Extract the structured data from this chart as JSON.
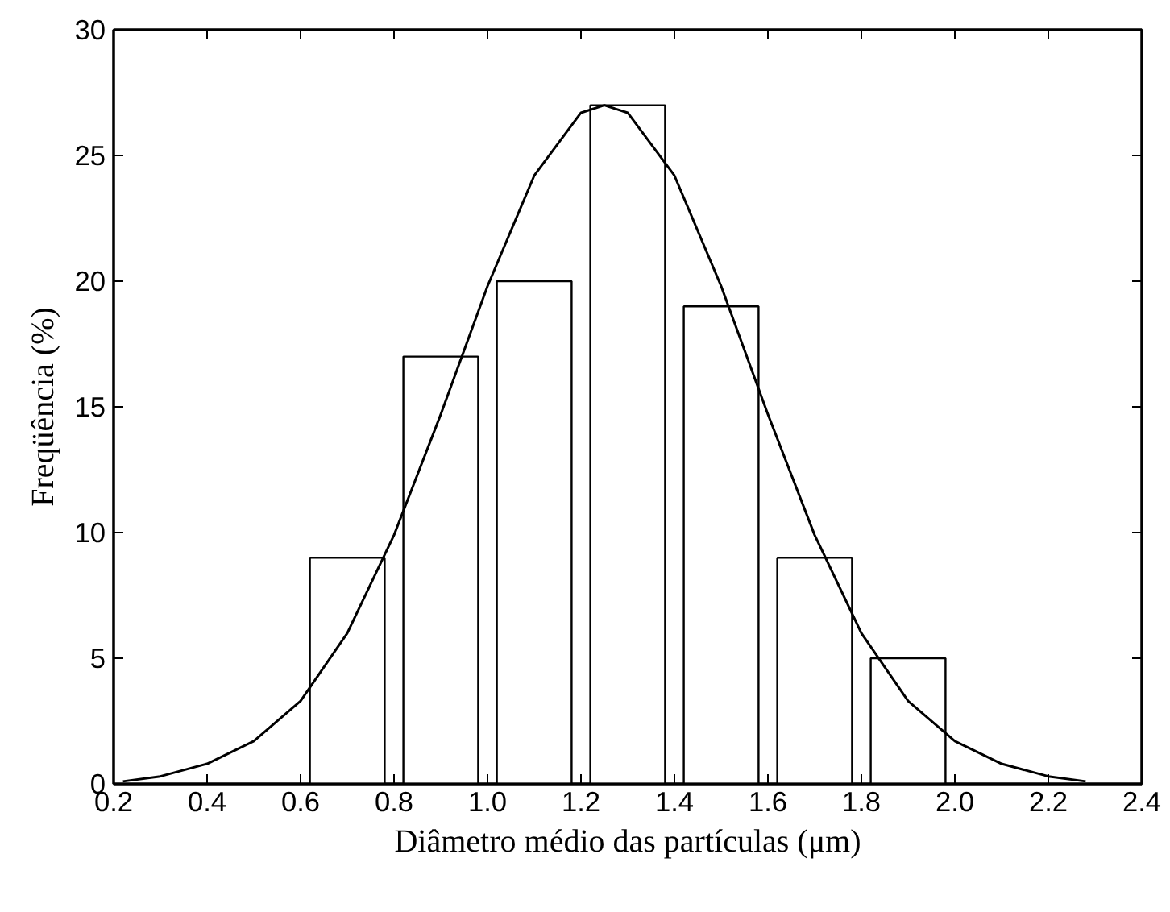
{
  "chart_data": {
    "type": "bar",
    "xlabel": "Diâmetro médio das partículas (μm)",
    "ylabel": "Freqüência (%)",
    "x": [
      0.7,
      0.9,
      1.1,
      1.3,
      1.5,
      1.7,
      1.9
    ],
    "series": [
      {
        "color": "#ffffff",
        "values": [
          9,
          17,
          20,
          27,
          19,
          9,
          5
        ]
      },
      {
        "type": "line",
        "color": "#000000",
        "x": [
          0.22,
          0.3,
          0.4,
          0.5,
          0.6,
          0.7,
          0.8,
          0.9,
          1.0,
          1.1,
          1.2,
          1.25,
          1.3,
          1.4,
          1.5,
          1.6,
          1.7,
          1.8,
          1.9,
          2.0,
          2.1,
          2.2,
          2.28
        ],
        "values": [
          0.1,
          0.3,
          0.8,
          1.7,
          3.3,
          6.0,
          9.9,
          14.7,
          19.8,
          24.2,
          26.7,
          27.0,
          26.7,
          24.2,
          19.8,
          14.7,
          9.9,
          6.0,
          3.3,
          1.7,
          0.8,
          0.3,
          0.1
        ]
      }
    ],
    "xlim": [
      0.2,
      2.4
    ],
    "ylim": [
      0,
      30
    ],
    "xticks": [
      {
        "value": 0.2,
        "label": "0.2"
      },
      {
        "value": 0.4,
        "label": "0.4"
      },
      {
        "value": 0.6,
        "label": "0.6"
      },
      {
        "value": 0.8,
        "label": "0.8"
      },
      {
        "value": 1.0,
        "label": "1.0"
      },
      {
        "value": 1.2,
        "label": "1.2"
      },
      {
        "value": 1.4,
        "label": "1.4"
      },
      {
        "value": 1.6,
        "label": "1.6"
      },
      {
        "value": 1.8,
        "label": "1.8"
      },
      {
        "value": 2.0,
        "label": "2.0"
      },
      {
        "value": 2.2,
        "label": "2.2"
      },
      {
        "value": 2.4,
        "label": "2.4"
      }
    ],
    "yticks": [
      0,
      5,
      10,
      15,
      20,
      25,
      30
    ],
    "grid": false
  }
}
